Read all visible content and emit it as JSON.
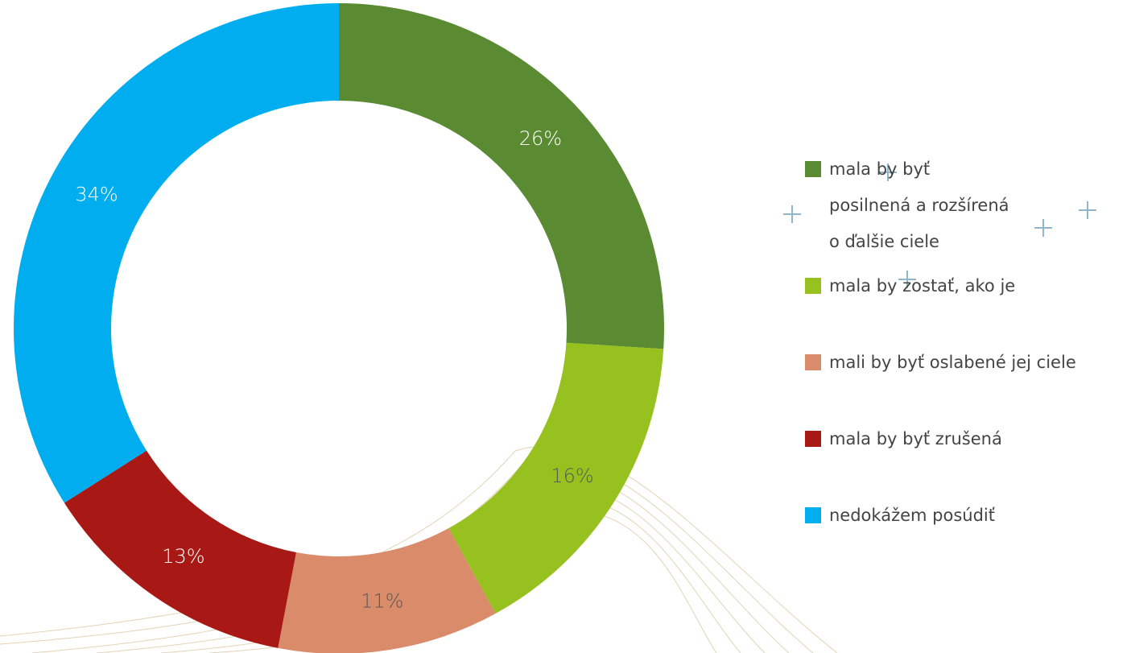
{
  "chart_data": {
    "type": "donut",
    "categories": [
      "mala by byť posilnená a rozšírená o ďalšie ciele",
      "mala by zostať, ako je",
      "mali by byť oslabené jej ciele",
      "mala by byť zrušená",
      "nedokážem posúdiť"
    ],
    "values": [
      26,
      16,
      11,
      13,
      34
    ],
    "value_labels": [
      "26%",
      "16%",
      "11%",
      "13%",
      "34%"
    ],
    "colors": [
      "#5a8a32",
      "#96c11f",
      "#d98b6a",
      "#a81916",
      "#00aeef"
    ],
    "label_colors": [
      "#ffffff",
      "#5a5a5a",
      "#5a5a5a",
      "#ffffff",
      "#ffffff"
    ],
    "legend": "right"
  }
}
